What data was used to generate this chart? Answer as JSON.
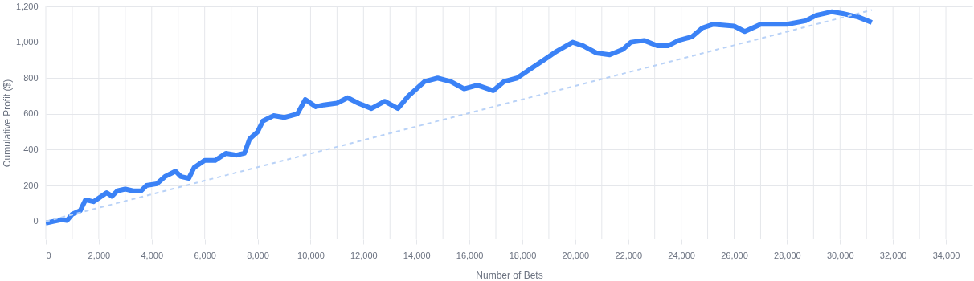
{
  "chart_data": {
    "type": "line",
    "xlabel": "Number of Bets",
    "ylabel": "Cumulative Profit ($)",
    "xlim": [
      0,
      35000
    ],
    "ylim": [
      -100,
      1200
    ],
    "xticks": [
      0,
      {
        "value": 1000,
        "label": null
      },
      {
        "value": 2000,
        "label": "2,000"
      },
      {
        "value": 3000,
        "label": null
      },
      {
        "value": 4000,
        "label": "4,000"
      },
      {
        "value": 5000,
        "label": null
      },
      {
        "value": 6000,
        "label": "6,000"
      },
      {
        "value": 7000,
        "label": null
      },
      {
        "value": 8000,
        "label": "8,000"
      },
      {
        "value": 9000,
        "label": null
      },
      {
        "value": 10000,
        "label": "10,000"
      },
      {
        "value": 11000,
        "label": null
      },
      {
        "value": 12000,
        "label": "12,000"
      },
      {
        "value": 13000,
        "label": null
      },
      {
        "value": 14000,
        "label": "14,000"
      },
      {
        "value": 15000,
        "label": null
      },
      {
        "value": 16000,
        "label": "16,000"
      },
      {
        "value": 17000,
        "label": null
      },
      {
        "value": 18000,
        "label": "18,000"
      },
      {
        "value": 19000,
        "label": null
      },
      {
        "value": 20000,
        "label": "20,000"
      },
      {
        "value": 21000,
        "label": null
      },
      {
        "value": 22000,
        "label": "22,000"
      },
      {
        "value": 23000,
        "label": null
      },
      {
        "value": 24000,
        "label": "24,000"
      },
      {
        "value": 25000,
        "label": null
      },
      {
        "value": 26000,
        "label": "26,000"
      },
      {
        "value": 27000,
        "label": null
      },
      {
        "value": 28000,
        "label": "28,000"
      },
      {
        "value": 29000,
        "label": null
      },
      {
        "value": 30000,
        "label": "30,000"
      },
      {
        "value": 31000,
        "label": null
      },
      {
        "value": 32000,
        "label": "32,000"
      },
      {
        "value": 33000,
        "label": null
      },
      {
        "value": 34000,
        "label": "34,000"
      }
    ],
    "yticks": [
      0,
      200,
      400,
      600,
      800,
      {
        "value": 1000,
        "label": "1,000"
      },
      {
        "value": 1200,
        "label": "1,200"
      }
    ],
    "grid": true,
    "marker": "none",
    "series": [
      {
        "color": "#3b82f6",
        "line_style": "solid",
        "x": [
          0,
          300,
          600,
          800,
          1000,
          1300,
          1500,
          1800,
          2000,
          2300,
          2500,
          2700,
          3000,
          3300,
          3600,
          3800,
          4200,
          4500,
          4900,
          5100,
          5400,
          5600,
          6000,
          6400,
          6800,
          7200,
          7500,
          7700,
          8000,
          8200,
          8600,
          9000,
          9500,
          9800,
          10200,
          10500,
          11000,
          11400,
          11800,
          12300,
          12800,
          13300,
          13700,
          14300,
          14800,
          15300,
          15800,
          16300,
          16900,
          17300,
          17800,
          18300,
          18800,
          19300,
          19900,
          20300,
          20800,
          21300,
          21800,
          22100,
          22600,
          23100,
          23500,
          23900,
          24400,
          24800,
          25200,
          26000,
          26400,
          27000,
          28000,
          28700,
          29100,
          29700,
          30100,
          30700,
          31200
        ],
        "values": [
          -10,
          0,
          10,
          5,
          40,
          60,
          120,
          110,
          130,
          160,
          140,
          170,
          180,
          170,
          170,
          200,
          210,
          250,
          280,
          250,
          240,
          300,
          340,
          340,
          380,
          370,
          380,
          460,
          500,
          560,
          590,
          580,
          600,
          680,
          640,
          650,
          660,
          690,
          660,
          630,
          670,
          630,
          700,
          780,
          800,
          780,
          740,
          760,
          730,
          780,
          800,
          850,
          900,
          950,
          1000,
          980,
          940,
          930,
          960,
          1000,
          1010,
          980,
          980,
          1010,
          1030,
          1080,
          1100,
          1090,
          1060,
          1100,
          1100,
          1120,
          1150,
          1170,
          1160,
          1140,
          1110
        ]
      },
      {
        "color": "#b9d2f7",
        "line_style": "dashed",
        "x": [
          0,
          31200
        ],
        "values": [
          0,
          1180
        ]
      }
    ]
  }
}
